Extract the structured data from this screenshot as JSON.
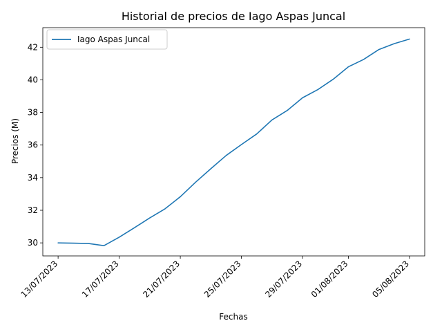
{
  "chart_data": {
    "type": "line",
    "title": "Historial de precios de Iago Aspas Juncal",
    "xlabel": "Fechas",
    "ylabel": "Precios (M)",
    "x_ticks": [
      "13/07/2023",
      "17/07/2023",
      "21/07/2023",
      "25/07/2023",
      "29/07/2023",
      "01/08/2023",
      "05/08/2023"
    ],
    "y_ticks": [
      "30",
      "32",
      "34",
      "36",
      "38",
      "40",
      "42"
    ],
    "ylim": [
      29.2,
      43.2
    ],
    "xlim": [
      "12/07/2023",
      "06/08/2023"
    ],
    "grid": false,
    "legend_position": "upper left",
    "colors": {
      "series": "#1f77b4"
    },
    "series": [
      {
        "name": "Iago Aspas Juncal",
        "x": [
          "13/07/2023",
          "14/07/2023",
          "15/07/2023",
          "16/07/2023",
          "17/07/2023",
          "18/07/2023",
          "19/07/2023",
          "20/07/2023",
          "21/07/2023",
          "22/07/2023",
          "23/07/2023",
          "24/07/2023",
          "25/07/2023",
          "26/07/2023",
          "27/07/2023",
          "28/07/2023",
          "29/07/2023",
          "30/07/2023",
          "31/07/2023",
          "01/08/2023",
          "02/08/2023",
          "03/08/2023",
          "04/08/2023",
          "05/08/2023"
        ],
        "values": [
          30.0,
          29.98,
          29.96,
          29.83,
          30.35,
          30.93,
          31.53,
          32.09,
          32.83,
          33.72,
          34.55,
          35.36,
          36.03,
          36.68,
          37.54,
          38.12,
          38.9,
          39.4,
          40.03,
          40.8,
          41.25,
          41.86,
          42.22,
          42.5
        ]
      }
    ]
  }
}
